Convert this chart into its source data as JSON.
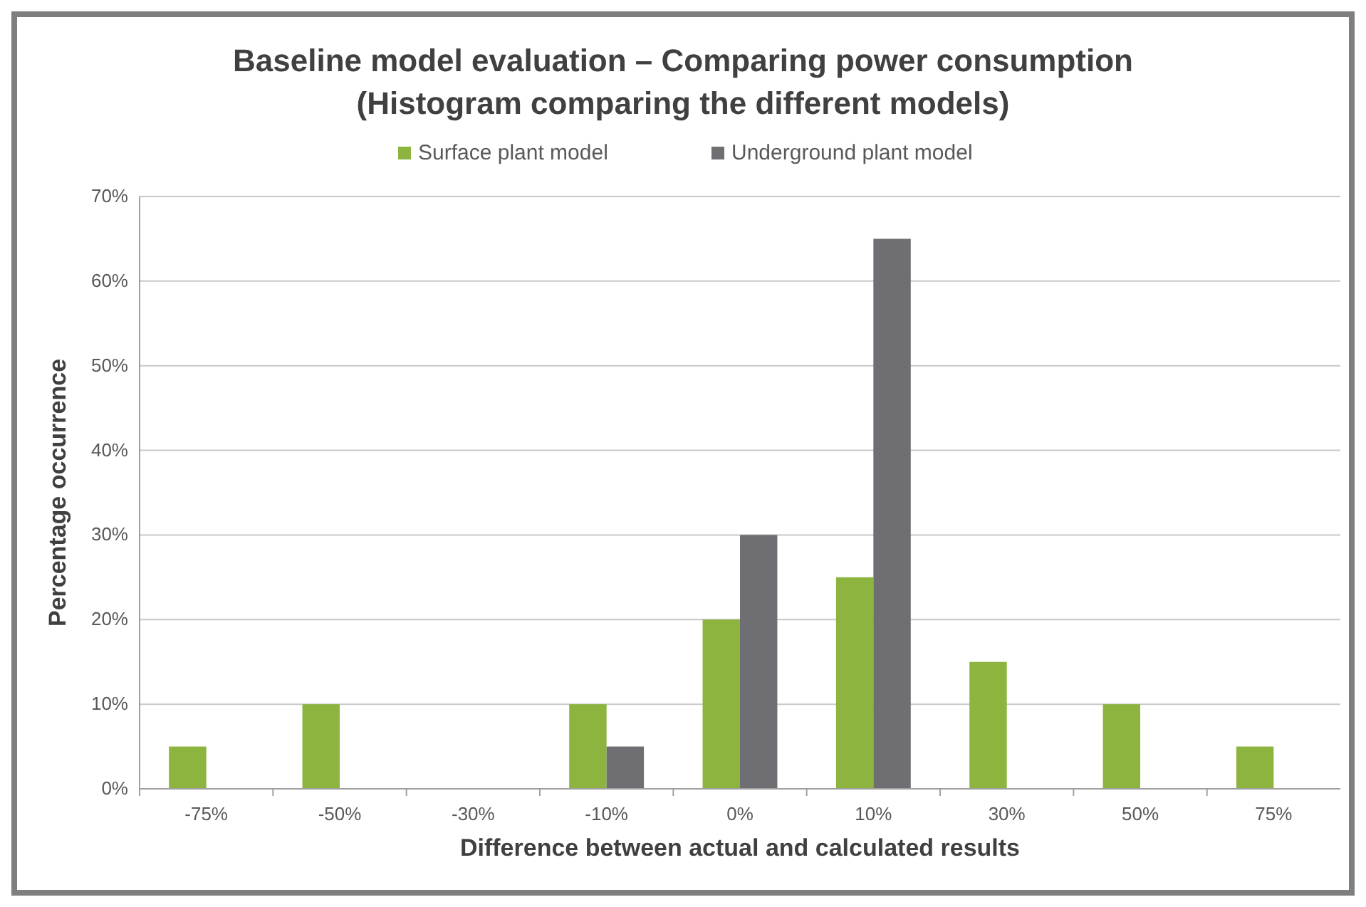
{
  "chart_data": {
    "type": "bar",
    "title": "Baseline model evaluation – Comparing power consumption\n(Histogram comparing the different models)",
    "xlabel": "Difference between actual and calculated results",
    "ylabel": "Percentage occurrence",
    "categories": [
      "-75%",
      "-50%",
      "-30%",
      "-10%",
      "0%",
      "10%",
      "30%",
      "50%",
      "75%"
    ],
    "series": [
      {
        "name": "Surface plant model",
        "color": "#8db43e",
        "values": [
          5,
          10,
          0,
          10,
          20,
          25,
          15,
          10,
          5
        ]
      },
      {
        "name": "Underground plant model",
        "color": "#6e6e73",
        "values": [
          0,
          0,
          0,
          5,
          30,
          65,
          0,
          0,
          0
        ]
      }
    ],
    "ylim": [
      0,
      70
    ],
    "yticks": [
      {
        "value": 0,
        "label": "0%"
      },
      {
        "value": 10,
        "label": "10%"
      },
      {
        "value": 20,
        "label": "20%"
      },
      {
        "value": 30,
        "label": "30%"
      },
      {
        "value": 40,
        "label": "40%"
      },
      {
        "value": 50,
        "label": "50%"
      },
      {
        "value": 60,
        "label": "60%"
      },
      {
        "value": 70,
        "label": "70%"
      }
    ],
    "grid": "y",
    "legend": "top"
  }
}
